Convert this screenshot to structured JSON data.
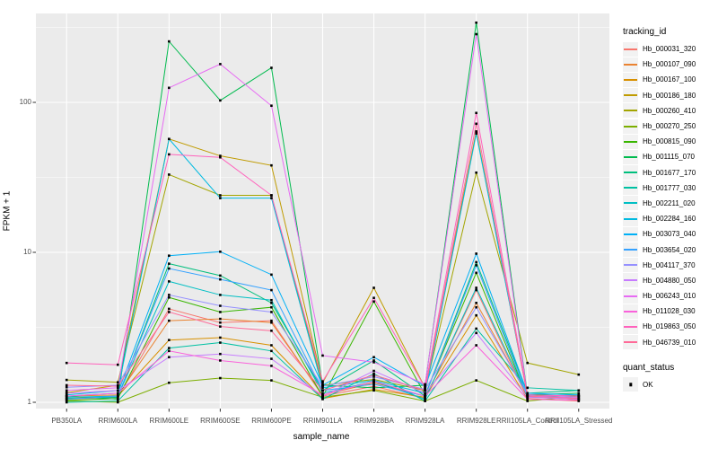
{
  "chart_data": {
    "type": "line",
    "title": "",
    "xlabel": "sample_name",
    "ylabel": "FPKM + 1",
    "y_scale": "log10",
    "ylim": [
      0.91,
      400
    ],
    "y_ticks": [
      1,
      10,
      100
    ],
    "y_tick_labels": [
      "1",
      "10",
      "100"
    ],
    "y_minor_breaks": [
      3.162,
      31.62,
      316.2
    ],
    "grid": "on",
    "panel_bg": "#EBEBEB",
    "grid_color": "#FFFFFF",
    "point_color": "#000000",
    "tick_color": "#333333",
    "categories": [
      "PB350LA",
      "RRIM600LA",
      "RRIM600LE",
      "RRIM600SE",
      "RRIM600PE",
      "RRIM901LA",
      "RRIM928BA",
      "RRIM928LA",
      "RRIM928LE",
      "RRII105LA_Control",
      "RRII105LA_Stressed"
    ],
    "legend": {
      "title": "tracking_id",
      "position": "right"
    },
    "quant_legend": {
      "title": "quant_status",
      "items": [
        "OK"
      ]
    },
    "series": [
      {
        "name": "Hb_000031_320",
        "color": "#F8766D",
        "values": [
          1.05,
          1.08,
          4.2,
          3.4,
          3.5,
          1.1,
          1.28,
          1.06,
          5.6,
          1.06,
          1.02
        ]
      },
      {
        "name": "Hb_000107_090",
        "color": "#EA8331",
        "values": [
          1.1,
          1.12,
          3.5,
          3.6,
          3.4,
          1.12,
          1.35,
          1.1,
          4.6,
          1.1,
          1.04
        ]
      },
      {
        "name": "Hb_000167_100",
        "color": "#D89000",
        "values": [
          1.06,
          1.1,
          2.6,
          2.7,
          2.4,
          1.06,
          1.22,
          1.08,
          3.8,
          1.05,
          1.03
        ]
      },
      {
        "name": "Hb_000186_180",
        "color": "#C09B00",
        "values": [
          1.16,
          1.3,
          57,
          44,
          38,
          1.35,
          5.8,
          1.25,
          64,
          1.12,
          1.06
        ]
      },
      {
        "name": "Hb_000260_410",
        "color": "#A3A500",
        "values": [
          1.41,
          1.36,
          33,
          24,
          24,
          1.3,
          1.42,
          1.2,
          34,
          1.83,
          1.53
        ]
      },
      {
        "name": "Hb_000270_250",
        "color": "#7CAE00",
        "values": [
          1.02,
          1.0,
          1.35,
          1.45,
          1.4,
          1.08,
          1.2,
          1.02,
          1.4,
          1.02,
          1.1
        ]
      },
      {
        "name": "Hb_000815_090",
        "color": "#39B600",
        "values": [
          1.03,
          1.06,
          5.0,
          4.0,
          4.3,
          1.09,
          4.7,
          1.12,
          7.3,
          1.08,
          1.12
        ]
      },
      {
        "name": "Hb_001115_070",
        "color": "#00BB4E",
        "values": [
          1.1,
          1.05,
          255,
          103,
          170,
          1.3,
          1.25,
          1.3,
          340,
          1.12,
          1.15
        ]
      },
      {
        "name": "Hb_001677_170",
        "color": "#00BF7D",
        "values": [
          1.06,
          1.08,
          8.4,
          7.0,
          4.6,
          1.2,
          1.9,
          1.1,
          8.6,
          1.15,
          1.2
        ]
      },
      {
        "name": "Hb_001777_030",
        "color": "#00C1A3",
        "values": [
          1.0,
          1.02,
          2.3,
          2.5,
          2.2,
          1.05,
          1.55,
          1.02,
          3.1,
          1.25,
          1.2
        ]
      },
      {
        "name": "Hb_002211_020",
        "color": "#00BFC4",
        "values": [
          1.08,
          1.1,
          6.4,
          5.2,
          4.8,
          1.15,
          1.38,
          1.05,
          5.8,
          1.1,
          1.08
        ]
      },
      {
        "name": "Hb_002284_160",
        "color": "#00BAE0",
        "values": [
          1.12,
          1.2,
          57,
          23,
          23,
          1.25,
          1.4,
          1.15,
          62,
          1.12,
          1.1
        ]
      },
      {
        "name": "Hb_003073_040",
        "color": "#00B0F6",
        "values": [
          1.1,
          1.15,
          9.5,
          10.1,
          7.1,
          1.3,
          2.0,
          1.28,
          9.8,
          1.15,
          1.12
        ]
      },
      {
        "name": "Hb_003654_020",
        "color": "#35A2FF",
        "values": [
          1.05,
          1.1,
          7.8,
          6.6,
          5.6,
          1.2,
          1.32,
          1.1,
          8.2,
          1.1,
          1.05
        ]
      },
      {
        "name": "Hb_004117_370",
        "color": "#9590FF",
        "values": [
          1.26,
          1.3,
          5.2,
          4.4,
          4.0,
          1.28,
          1.48,
          1.22,
          4.3,
          1.12,
          1.1
        ]
      },
      {
        "name": "Hb_004880_050",
        "color": "#C77CFF",
        "values": [
          1.15,
          1.2,
          2.0,
          2.1,
          1.95,
          1.1,
          1.62,
          1.15,
          2.9,
          1.08,
          1.05
        ]
      },
      {
        "name": "Hb_006243_010",
        "color": "#E76BF3",
        "values": [
          1.2,
          1.25,
          125,
          180,
          95,
          2.05,
          1.85,
          1.32,
          285,
          1.1,
          1.08
        ]
      },
      {
        "name": "Hb_011028_030",
        "color": "#FA62DB",
        "values": [
          1.1,
          1.15,
          2.2,
          1.9,
          1.75,
          1.12,
          1.38,
          1.1,
          2.4,
          1.05,
          1.03
        ]
      },
      {
        "name": "Hb_019863_050",
        "color": "#FF62BC",
        "values": [
          1.83,
          1.78,
          45,
          43,
          24,
          1.38,
          4.97,
          1.25,
          85,
          1.12,
          1.1
        ]
      },
      {
        "name": "Hb_046739_010",
        "color": "#FF6A98",
        "values": [
          1.3,
          1.28,
          4.0,
          3.2,
          3.0,
          1.2,
          1.52,
          1.2,
          72,
          1.1,
          1.06
        ]
      }
    ]
  }
}
